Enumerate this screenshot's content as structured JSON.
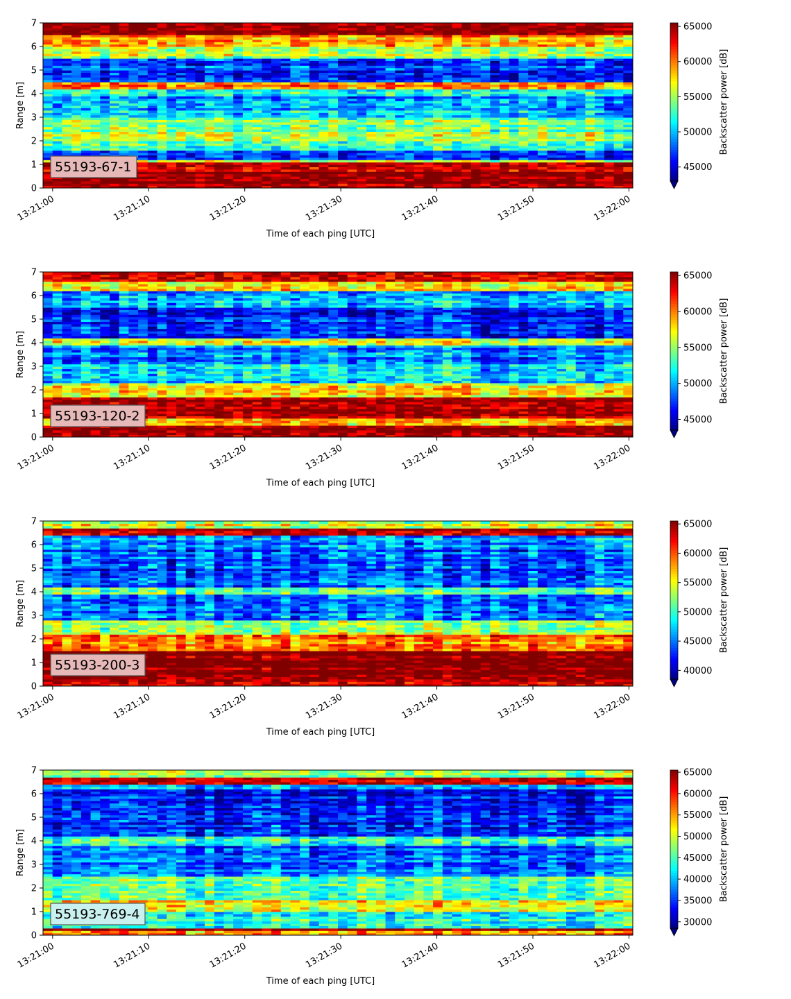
{
  "chart_data": [
    {
      "type": "heatmap",
      "label": "55193-67-1",
      "label_bg": "#e6b8b8",
      "xlabel": "Time of each ping [UTC]",
      "ylabel": "Range [m]",
      "xticks": [
        "13:21:00",
        "13:21:10",
        "13:21:20",
        "13:21:30",
        "13:21:40",
        "13:21:50",
        "13:22:00"
      ],
      "x_range_seconds": [
        -1,
        60.4
      ],
      "ylim": [
        0,
        7
      ],
      "yticks": [
        0,
        1,
        2,
        3,
        4,
        5,
        6,
        7
      ],
      "colorbar": {
        "label": "Backscatter power [dB]",
        "min": 43000,
        "max": 65500,
        "ticks": [
          45000,
          50000,
          55000,
          60000,
          65000
        ],
        "extend": "min"
      },
      "colormap": "jet",
      "bands": [
        {
          "range": [
            0,
            0.25
          ],
          "value": 64000
        },
        {
          "range": [
            0.25,
            0.75
          ],
          "value": 65500
        },
        {
          "range": [
            0.75,
            1.1
          ],
          "value": 63500
        },
        {
          "range": [
            1.1,
            1.25
          ],
          "value": 57000
        },
        {
          "range": [
            1.25,
            1.6
          ],
          "value": 47000
        },
        {
          "range": [
            1.6,
            2.0
          ],
          "value": 53000
        },
        {
          "range": [
            2.0,
            2.4
          ],
          "value": 55000
        },
        {
          "range": [
            2.4,
            3.0
          ],
          "value": 54000
        },
        {
          "range": [
            3.0,
            3.3
          ],
          "value": 51000
        },
        {
          "range": [
            3.3,
            3.9
          ],
          "value": 49000
        },
        {
          "range": [
            3.9,
            4.25
          ],
          "value": 52000
        },
        {
          "range": [
            4.25,
            4.55
          ],
          "value": 60000
        },
        {
          "range": [
            4.55,
            5.5
          ],
          "value": 47000
        },
        {
          "range": [
            5.5,
            6.0
          ],
          "value": 55000
        },
        {
          "range": [
            6.0,
            6.5
          ],
          "value": 59000
        },
        {
          "range": [
            6.5,
            7.0
          ],
          "value": 65500
        }
      ]
    },
    {
      "type": "heatmap",
      "label": "55193-120-2",
      "label_bg": "#e6b8b8",
      "xlabel": "Time of each ping [UTC]",
      "ylabel": "Range [m]",
      "xticks": [
        "13:21:00",
        "13:21:10",
        "13:21:20",
        "13:21:30",
        "13:21:40",
        "13:21:50",
        "13:22:00"
      ],
      "x_range_seconds": [
        -1,
        60.4
      ],
      "ylim": [
        0,
        7
      ],
      "yticks": [
        0,
        1,
        2,
        3,
        4,
        5,
        6,
        7
      ],
      "colorbar": {
        "label": "Backscatter power [dB]",
        "min": 43500,
        "max": 65500,
        "ticks": [
          45000,
          50000,
          55000,
          60000,
          65000
        ],
        "extend": "min"
      },
      "colormap": "jet",
      "bands": [
        {
          "range": [
            0,
            0.15
          ],
          "value": 64000
        },
        {
          "range": [
            0.15,
            0.5
          ],
          "value": 65500
        },
        {
          "range": [
            0.5,
            0.8
          ],
          "value": 59000
        },
        {
          "range": [
            0.8,
            1.7
          ],
          "value": 65000
        },
        {
          "range": [
            1.7,
            2.3
          ],
          "value": 57000
        },
        {
          "range": [
            2.3,
            3.1
          ],
          "value": 51000
        },
        {
          "range": [
            3.1,
            3.9
          ],
          "value": 49000
        },
        {
          "range": [
            3.9,
            4.2
          ],
          "value": 56000
        },
        {
          "range": [
            4.2,
            5.5
          ],
          "value": 47000
        },
        {
          "range": [
            5.5,
            6.2
          ],
          "value": 50000
        },
        {
          "range": [
            6.2,
            6.6
          ],
          "value": 58000
        },
        {
          "range": [
            6.6,
            7.0
          ],
          "value": 64000
        }
      ]
    },
    {
      "type": "heatmap",
      "label": "55193-200-3",
      "label_bg": "#e6b8b8",
      "xlabel": "Time of each ping [UTC]",
      "ylabel": "Range [m]",
      "xticks": [
        "13:21:00",
        "13:21:10",
        "13:21:20",
        "13:21:30",
        "13:21:40",
        "13:21:50",
        "13:22:00"
      ],
      "x_range_seconds": [
        -1,
        60.4
      ],
      "ylim": [
        0,
        7
      ],
      "yticks": [
        0,
        1,
        2,
        3,
        4,
        5,
        6,
        7
      ],
      "colorbar": {
        "label": "Backscatter power [dB]",
        "min": 38500,
        "max": 65500,
        "ticks": [
          40000,
          45000,
          50000,
          55000,
          60000,
          65000
        ],
        "extend": "min"
      },
      "colormap": "jet",
      "bands": [
        {
          "range": [
            0,
            0.3
          ],
          "value": 64000
        },
        {
          "range": [
            0.3,
            1.5
          ],
          "value": 65500
        },
        {
          "range": [
            1.5,
            2.2
          ],
          "value": 59000
        },
        {
          "range": [
            2.2,
            2.8
          ],
          "value": 53000
        },
        {
          "range": [
            2.8,
            3.9
          ],
          "value": 45000
        },
        {
          "range": [
            3.9,
            4.2
          ],
          "value": 52000
        },
        {
          "range": [
            4.2,
            5.8
          ],
          "value": 44000
        },
        {
          "range": [
            5.8,
            6.4
          ],
          "value": 46000
        },
        {
          "range": [
            6.4,
            6.75
          ],
          "value": 64000
        },
        {
          "range": [
            6.75,
            7.0
          ],
          "value": 54000
        }
      ]
    },
    {
      "type": "heatmap",
      "label": "55193-769-4",
      "label_bg": "#c9f1ef",
      "xlabel": "Time of each ping [UTC]",
      "ylabel": "Range [m]",
      "xticks": [
        "13:21:00",
        "13:21:10",
        "13:21:20",
        "13:21:30",
        "13:21:40",
        "13:21:50",
        "13:22:00"
      ],
      "x_range_seconds": [
        -1,
        60.4
      ],
      "ylim": [
        0,
        7
      ],
      "yticks": [
        0,
        1,
        2,
        3,
        4,
        5,
        6,
        7
      ],
      "colorbar": {
        "label": "Backscatter power [dB]",
        "min": 28500,
        "max": 65500,
        "ticks": [
          30000,
          35000,
          40000,
          45000,
          50000,
          55000,
          60000,
          65000
        ],
        "extend": "min"
      },
      "colormap": "jet",
      "bands": [
        {
          "range": [
            0,
            0.2
          ],
          "value": 55000
        },
        {
          "range": [
            0.2,
            0.35
          ],
          "value": 65500
        },
        {
          "range": [
            0.35,
            1.0
          ],
          "value": 44000
        },
        {
          "range": [
            1.0,
            1.5
          ],
          "value": 52000
        },
        {
          "range": [
            1.5,
            2.5
          ],
          "value": 45000
        },
        {
          "range": [
            2.5,
            3.8
          ],
          "value": 37000
        },
        {
          "range": [
            3.8,
            4.2
          ],
          "value": 44000
        },
        {
          "range": [
            4.2,
            6.2
          ],
          "value": 34000
        },
        {
          "range": [
            6.2,
            6.4
          ],
          "value": 40000
        },
        {
          "range": [
            6.4,
            6.7
          ],
          "value": 64000
        },
        {
          "range": [
            6.7,
            7.0
          ],
          "value": 47000
        }
      ]
    }
  ]
}
